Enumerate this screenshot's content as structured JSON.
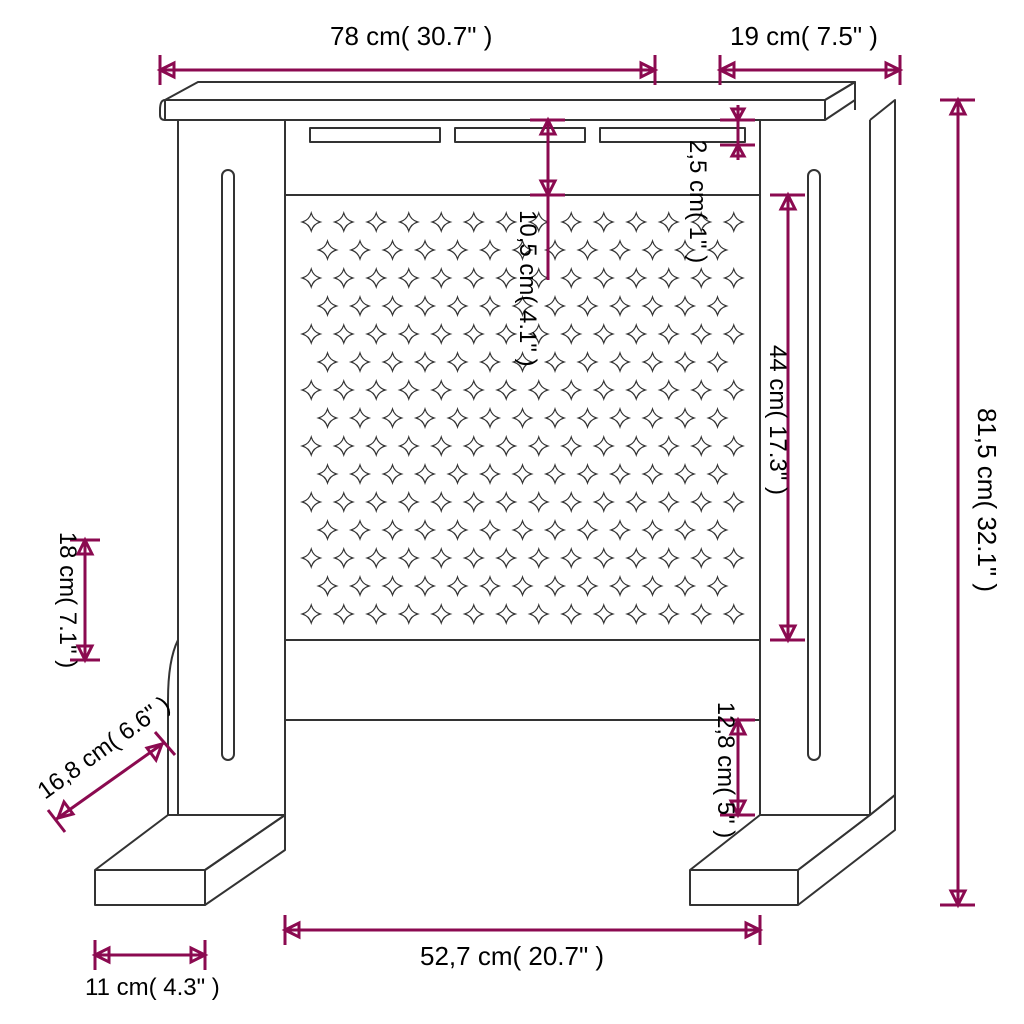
{
  "colors": {
    "dimension_line": "#8b0a50",
    "product_line": "#333333",
    "text": "#000000",
    "background": "#ffffff"
  },
  "stroke": {
    "dimension_width": 3,
    "product_width": 2
  },
  "font": {
    "label_size": 26
  },
  "dimensions": {
    "width_top": "78 cm( 30.7\" )",
    "depth_top": "19 cm( 7.5\" )",
    "height_total": "81,5 cm( 32.1\" )",
    "slot_height": "2,5 cm( 1\" )",
    "rail_height": "10,5 cm( 4.1\" )",
    "grill_height": "44 cm( 17.3\" )",
    "bottom_gap": "12,8 cm( 5\" )",
    "inner_width": "52,7 cm( 20.7\" )",
    "foot_depth_front": "11 cm( 4.3\" )",
    "foot_depth_back": "16,8 cm( 6.6\" )",
    "foot_height": "18 cm( 7.1\" )"
  },
  "pattern": {
    "rows": 15,
    "cols": 14,
    "symbol": "✦"
  }
}
